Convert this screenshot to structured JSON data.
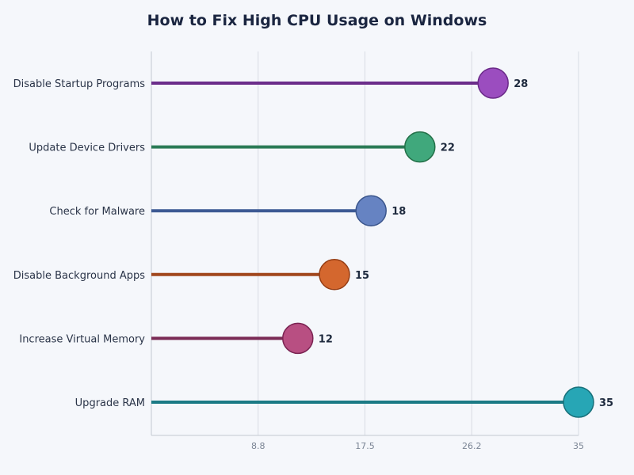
{
  "chart_data": {
    "type": "lollipop",
    "title": "How to Fix High CPU Usage on Windows",
    "categories": [
      "Disable Startup Programs",
      "Update Device Drivers",
      "Check for Malware",
      "Disable Background Apps",
      "Increase Virtual Memory",
      "Upgrade RAM"
    ],
    "values": [
      28,
      22,
      18,
      15,
      12,
      35
    ],
    "xlim": [
      0,
      35
    ],
    "xticks": [
      "8.8",
      "17.5",
      "26.2",
      "35"
    ],
    "xtick_values": [
      8.75,
      17.5,
      26.25,
      35
    ],
    "grid": true,
    "stem_colors": [
      "#6b2d8a",
      "#2a7a55",
      "#3d5a94",
      "#a0461c",
      "#7a2a55",
      "#1a7a85"
    ],
    "dot_colors": [
      "#9b4dbf",
      "#40a87c",
      "#6683c2",
      "#d4672e",
      "#b84f82",
      "#27a6b5"
    ]
  }
}
